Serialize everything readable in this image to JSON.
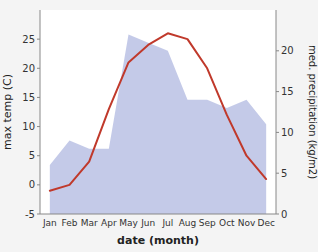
{
  "chart_data": {
    "type": "line",
    "xlabel": "date (month)",
    "ylabel": "max temp (C)",
    "y2label": "med. precipitation (kg/m2)",
    "categories": [
      "Jan",
      "Feb",
      "Mar",
      "Apr",
      "May",
      "Jun",
      "Jul",
      "Aug",
      "Sep",
      "Oct",
      "Nov",
      "Dec"
    ],
    "series": [
      {
        "type": "area",
        "axis": "y2",
        "color": "#b0b8e0",
        "values": [
          6,
          9,
          8,
          8,
          22,
          21,
          20,
          14,
          14,
          13,
          14,
          11
        ]
      },
      {
        "type": "line",
        "color": "#c0392b",
        "values": [
          -1,
          0,
          4,
          13,
          21,
          24,
          26,
          25,
          20,
          12,
          5,
          1
        ]
      }
    ],
    "ylim": [
      -5,
      30
    ],
    "yticks": [
      -5,
      0,
      5,
      10,
      15,
      20,
      25
    ],
    "y2lim": [
      0,
      25
    ],
    "y2ticks": [
      0,
      5,
      10,
      15,
      20
    ]
  }
}
